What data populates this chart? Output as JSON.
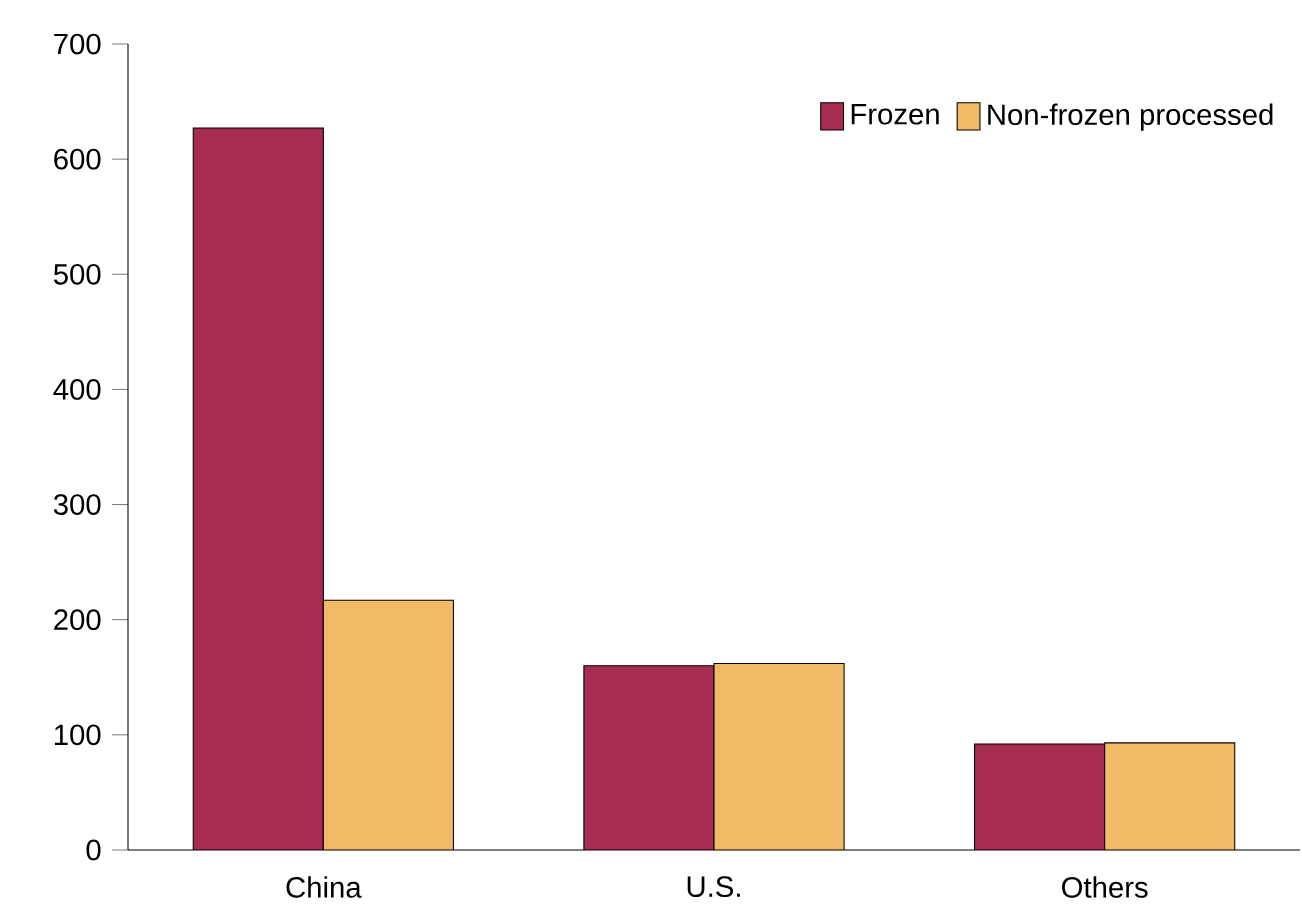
{
  "chart_data": {
    "type": "bar",
    "categories": [
      "China",
      "U.S.",
      "Others"
    ],
    "series": [
      {
        "name": "Frozen",
        "color": "#a62c51",
        "values": [
          627,
          160,
          92
        ]
      },
      {
        "name": "Non-frozen processed",
        "color": "#f0ba66",
        "values": [
          217,
          162,
          93
        ]
      }
    ],
    "ylim": [
      0,
      700
    ],
    "yticks": [
      0,
      100,
      200,
      300,
      400,
      500,
      600,
      700
    ],
    "legend": "top right",
    "grid": false
  }
}
